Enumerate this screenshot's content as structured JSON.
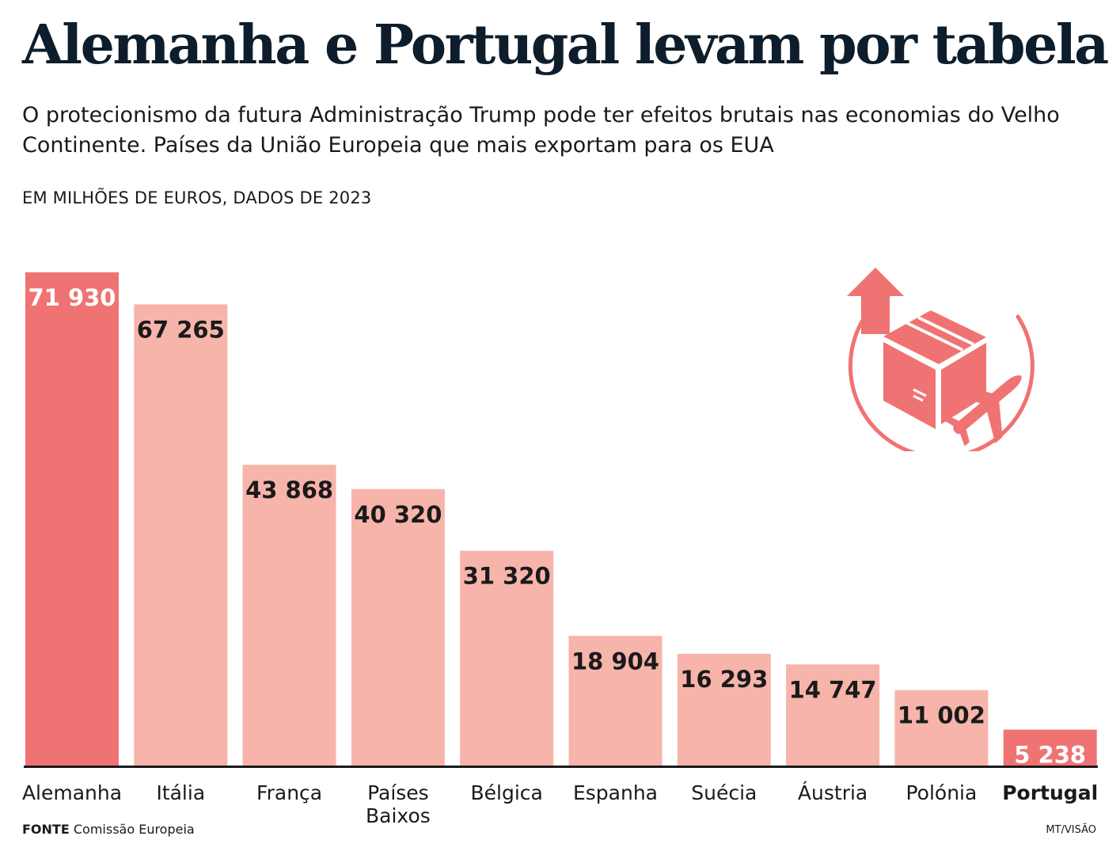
{
  "title": "Alemanha e Portugal levam por tabela",
  "subtitle": "O protecionismo da futura Administração Trump pode ter efeitos brutais nas economias do Velho Continente. Países da União Europeia que mais exportam para os EUA",
  "unit_label": "EM MILHÕES DE EUROS, DADOS DE 2023",
  "source": {
    "label": "FONTE",
    "text": "Comissão Europeia"
  },
  "credit": "MT/VISÃO",
  "icon": "export-box-airplane-icon",
  "colors": {
    "highlight": "#f07373",
    "bar": "#f7b4ab",
    "axis": "#1a1a1a",
    "value_on_highlight": "#ffffff",
    "value_on_bar": "#1a1a1a"
  },
  "chart_data": {
    "type": "bar",
    "categories": [
      "Alemanha",
      "Itália",
      "França",
      "Países Baixos",
      "Bélgica",
      "Espanha",
      "Suécia",
      "Áustria",
      "Polónia",
      "Portugal"
    ],
    "category_lines": [
      [
        "Alemanha"
      ],
      [
        "Itália"
      ],
      [
        "França"
      ],
      [
        "Países",
        "Baixos"
      ],
      [
        "Bélgica"
      ],
      [
        "Espanha"
      ],
      [
        "Suécia"
      ],
      [
        "Áustria"
      ],
      [
        "Polónia"
      ],
      [
        "Portugal"
      ]
    ],
    "values": [
      71930,
      67265,
      43868,
      40320,
      31320,
      18904,
      16293,
      14747,
      11002,
      5238
    ],
    "value_labels": [
      "71 930",
      "67 265",
      "43 868",
      "40 320",
      "31 320",
      "18 904",
      "16 293",
      "14 747",
      "11 002",
      "5 238"
    ],
    "highlighted": [
      "Alemanha",
      "Portugal"
    ],
    "ylim": [
      0,
      71930
    ],
    "grid": false
  }
}
